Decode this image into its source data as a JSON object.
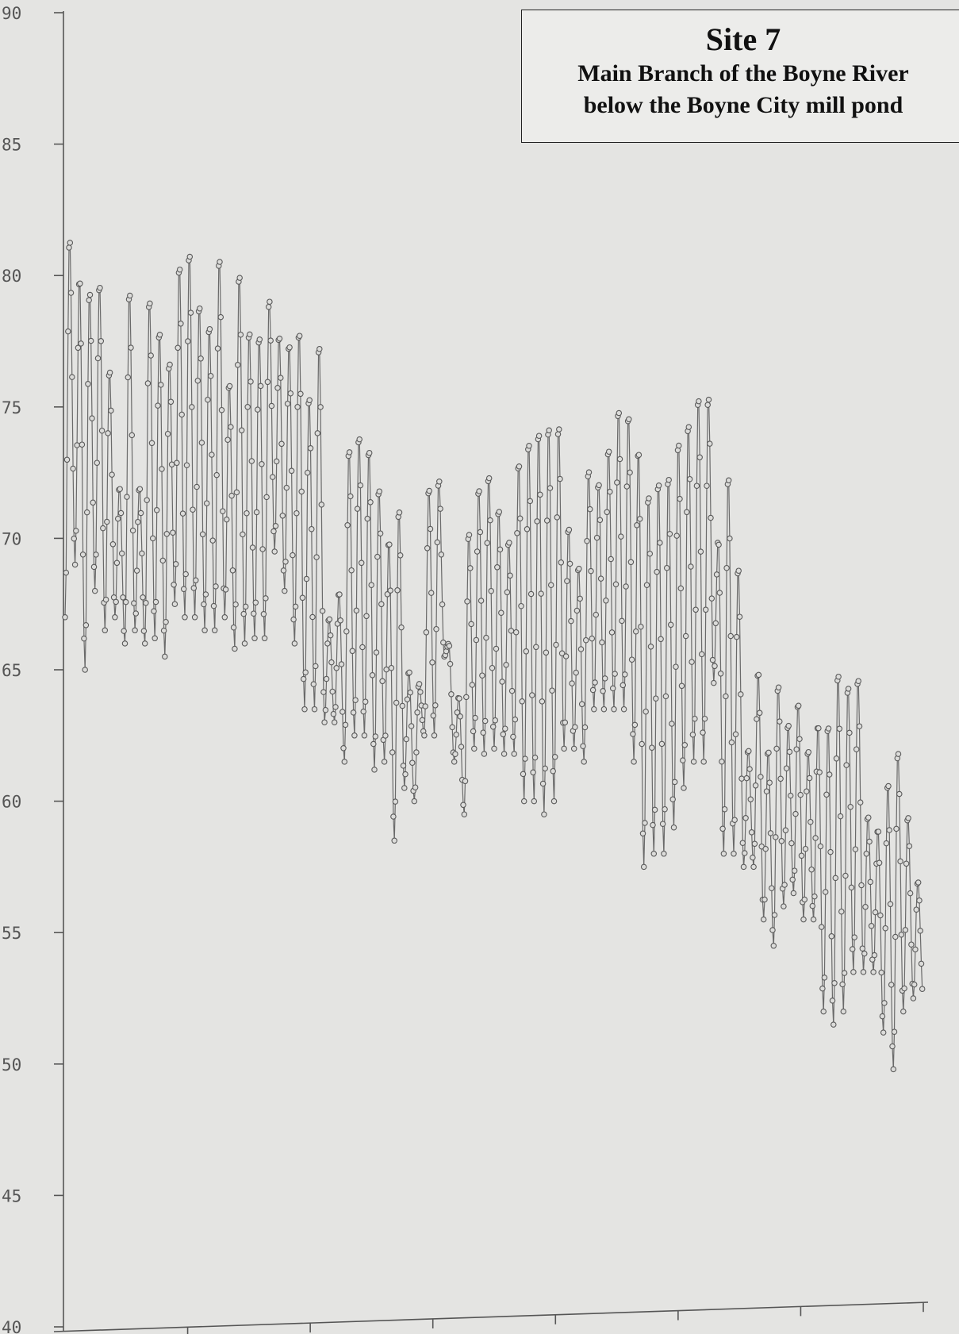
{
  "chart_data": {
    "type": "line",
    "title": "Site 7",
    "subtitle_lines": [
      "Main Branch of the Boyne River",
      "below the Boyne City mill pond"
    ],
    "xlabel": "",
    "ylabel": "",
    "ylim": [
      40,
      90
    ],
    "yticks": [
      "40",
      "45",
      "50",
      "55",
      "60",
      "65",
      "70",
      "75",
      "80",
      "85",
      "90"
    ],
    "x_tick_count": 7,
    "markers": "open-circle",
    "grid": false,
    "daily_cycles": [
      [
        67,
        81.5
      ],
      [
        69,
        80
      ],
      [
        65,
        79.5
      ],
      [
        68,
        79.8
      ],
      [
        66.5,
        76.5
      ],
      [
        67,
        72
      ],
      [
        66,
        79.5
      ],
      [
        66.5,
        72
      ],
      [
        66,
        79.2
      ],
      [
        66.2,
        78
      ],
      [
        65.5,
        76.8
      ],
      [
        67.5,
        80.5
      ],
      [
        67,
        81
      ],
      [
        67,
        79
      ],
      [
        66.5,
        78.2
      ],
      [
        66.5,
        80.8
      ],
      [
        67,
        76
      ],
      [
        65.8,
        80.2
      ],
      [
        66,
        78
      ],
      [
        66.2,
        77.8
      ],
      [
        66.2,
        79.2
      ],
      [
        69.5,
        77.8
      ],
      [
        68,
        77.5
      ],
      [
        66,
        78
      ],
      [
        63.5,
        75.5
      ],
      [
        63.5,
        77.5
      ],
      [
        63,
        67
      ],
      [
        63,
        68
      ],
      [
        61.5,
        73.5
      ],
      [
        62.5,
        74
      ],
      [
        62.5,
        73.5
      ],
      [
        61.2,
        72
      ],
      [
        61.5,
        70
      ],
      [
        58.5,
        71.2
      ],
      [
        60.5,
        65
      ],
      [
        60,
        64.5
      ],
      [
        62.5,
        72
      ],
      [
        62.5,
        72.3
      ],
      [
        65.5,
        66
      ],
      [
        61.5,
        64
      ],
      [
        59.5,
        70.3
      ],
      [
        62,
        72
      ],
      [
        61.8,
        72.5
      ],
      [
        62,
        71.2
      ],
      [
        61.8,
        70
      ],
      [
        61.8,
        73
      ],
      [
        60,
        73.8
      ],
      [
        60,
        74.2
      ],
      [
        59.5,
        74.4
      ],
      [
        60,
        74.4
      ],
      [
        62,
        70.5
      ],
      [
        62,
        69
      ],
      [
        61.5,
        72.7
      ],
      [
        63.5,
        72.2
      ],
      [
        63.5,
        73.5
      ],
      [
        63.5,
        75
      ],
      [
        63.5,
        74.8
      ],
      [
        61.5,
        73.5
      ],
      [
        57.5,
        71.8
      ],
      [
        58,
        72.3
      ],
      [
        58,
        72.5
      ],
      [
        59,
        73.8
      ],
      [
        60.5,
        74.5
      ],
      [
        61.5,
        75.5
      ],
      [
        61.5,
        75.5
      ],
      [
        64.5,
        70
      ],
      [
        58,
        72.5
      ],
      [
        58,
        69
      ],
      [
        57.5,
        62
      ],
      [
        57.5,
        65
      ],
      [
        55.5,
        62
      ],
      [
        54.5,
        64.5
      ],
      [
        56,
        63
      ],
      [
        56.5,
        63.8
      ],
      [
        55.5,
        62
      ],
      [
        55.5,
        63
      ],
      [
        52,
        63
      ],
      [
        51.5,
        65
      ],
      [
        52,
        64.5
      ],
      [
        53.5,
        64.8
      ],
      [
        53.5,
        59.5
      ],
      [
        53.5,
        59
      ],
      [
        51.2,
        60.8
      ],
      [
        49.8,
        62
      ],
      [
        52,
        59.5
      ],
      [
        52.5,
        57
      ]
    ]
  }
}
